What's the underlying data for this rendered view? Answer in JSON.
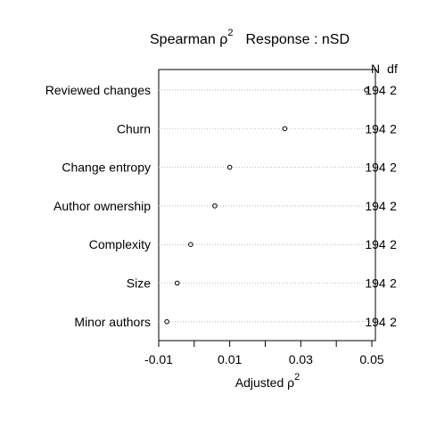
{
  "chart_data": {
    "type": "scatter",
    "title": {
      "prefix": "Spearman ρ",
      "superscript": "2",
      "response": "Response : nSD"
    },
    "xlabel": {
      "text": "Adjusted ρ",
      "superscript": "2"
    },
    "xlim": [
      -0.01,
      0.051
    ],
    "xticks": [
      {
        "value": -0.01,
        "label": "-0.01"
      },
      {
        "value": 0.0,
        "label": ""
      },
      {
        "value": 0.01,
        "label": "0.01"
      },
      {
        "value": 0.02,
        "label": ""
      },
      {
        "value": 0.03,
        "label": "0.03"
      },
      {
        "value": 0.04,
        "label": ""
      },
      {
        "value": 0.05,
        "label": "0.05"
      }
    ],
    "right_headers": {
      "n": "N",
      "df": "df"
    },
    "categories": [
      "Reviewed changes",
      "Churn",
      "Change entropy",
      "Author ownership",
      "Complexity",
      "Size",
      "Minor authors"
    ],
    "values": [
      0.0485,
      0.0255,
      0.01,
      0.0058,
      -0.001,
      -0.0048,
      -0.0077
    ],
    "n": [
      "194",
      "194",
      "194",
      "194",
      "194",
      "194",
      "194"
    ],
    "df": [
      "2",
      "2",
      "2",
      "2",
      "2",
      "2",
      "2"
    ],
    "dotted_guides": true,
    "colors": {
      "points": "#000000",
      "guides": "#bebebe",
      "axis": "#000000"
    }
  }
}
